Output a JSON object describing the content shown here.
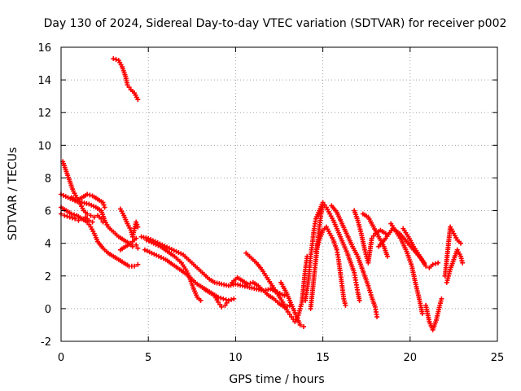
{
  "chart_data": {
    "type": "scatter",
    "title": "Day 130 of 2024, Sidereal Day-to-day VTEC variation (SDTVAR) for receiver p002",
    "xlabel": "GPS time / hours",
    "ylabel": "SDTVAR / TECUs",
    "xlim": [
      0,
      25
    ],
    "ylim": [
      -2,
      16
    ],
    "xticks": [
      "0",
      "5",
      "10",
      "15",
      "20",
      "25"
    ],
    "yticks": [
      "-2",
      "0",
      "2",
      "4",
      "6",
      "8",
      "10",
      "12",
      "14",
      "16"
    ],
    "grid": true,
    "marker": "+",
    "series_color": "#ff0000",
    "series": [
      {
        "name": "s1",
        "points": [
          [
            3.0,
            15.3
          ],
          [
            3.3,
            15.2
          ],
          [
            3.5,
            14.8
          ],
          [
            3.7,
            14.2
          ],
          [
            3.8,
            13.7
          ],
          [
            4.0,
            13.4
          ],
          [
            4.2,
            13.2
          ],
          [
            4.4,
            12.8
          ]
        ]
      },
      {
        "name": "s2",
        "points": [
          [
            0.1,
            9.0
          ],
          [
            0.3,
            8.4
          ],
          [
            0.5,
            7.8
          ],
          [
            0.7,
            7.2
          ],
          [
            0.9,
            6.8
          ],
          [
            1.1,
            6.4
          ],
          [
            1.3,
            6.0
          ],
          [
            1.5,
            5.8
          ],
          [
            1.7,
            5.7
          ],
          [
            1.9,
            5.6
          ],
          [
            2.1,
            5.7
          ],
          [
            2.3,
            5.5
          ],
          [
            2.4,
            5.3
          ]
        ]
      },
      {
        "name": "s3",
        "points": [
          [
            0.0,
            7.0
          ],
          [
            0.4,
            6.8
          ],
          [
            0.8,
            6.6
          ],
          [
            1.2,
            6.5
          ],
          [
            1.6,
            6.4
          ],
          [
            2.0,
            6.2
          ],
          [
            2.3,
            6.0
          ],
          [
            2.5,
            5.4
          ],
          [
            2.7,
            5.0
          ],
          [
            3.0,
            4.7
          ],
          [
            3.3,
            4.4
          ],
          [
            3.6,
            4.2
          ],
          [
            3.9,
            4.0
          ],
          [
            4.1,
            3.8
          ],
          [
            4.3,
            3.9
          ],
          [
            4.4,
            3.7
          ]
        ]
      },
      {
        "name": "s4",
        "points": [
          [
            0.0,
            6.2
          ],
          [
            0.3,
            6.0
          ],
          [
            0.6,
            5.8
          ],
          [
            0.9,
            5.7
          ],
          [
            1.2,
            5.5
          ],
          [
            1.5,
            5.3
          ],
          [
            1.7,
            5.0
          ],
          [
            1.9,
            4.6
          ],
          [
            2.1,
            4.1
          ],
          [
            2.4,
            3.7
          ],
          [
            2.7,
            3.4
          ],
          [
            3.0,
            3.2
          ],
          [
            3.3,
            3.0
          ],
          [
            3.6,
            2.8
          ],
          [
            3.9,
            2.6
          ],
          [
            4.2,
            2.6
          ],
          [
            4.4,
            2.7
          ]
        ]
      },
      {
        "name": "s5",
        "points": [
          [
            0.0,
            5.8
          ],
          [
            0.2,
            5.7
          ],
          [
            0.5,
            5.6
          ],
          [
            0.8,
            5.5
          ],
          [
            1.0,
            5.4
          ],
          [
            1.2,
            5.5
          ],
          [
            1.4,
            5.6
          ],
          [
            1.6,
            5.4
          ],
          [
            1.8,
            5.3
          ]
        ]
      },
      {
        "name": "s6",
        "points": [
          [
            0.6,
            6.8
          ],
          [
            0.9,
            6.6
          ],
          [
            1.2,
            6.8
          ],
          [
            1.5,
            7.0
          ],
          [
            1.8,
            6.9
          ],
          [
            2.1,
            6.7
          ],
          [
            2.4,
            6.5
          ],
          [
            2.5,
            6.2
          ]
        ]
      },
      {
        "name": "s7",
        "points": [
          [
            3.4,
            6.1
          ],
          [
            3.6,
            5.7
          ],
          [
            3.8,
            5.2
          ],
          [
            4.0,
            4.8
          ],
          [
            4.1,
            4.4
          ],
          [
            4.3,
            5.3
          ],
          [
            4.4,
            5.0
          ]
        ]
      },
      {
        "name": "s8",
        "points": [
          [
            3.4,
            3.6
          ],
          [
            3.7,
            3.8
          ],
          [
            4.0,
            4.0
          ],
          [
            4.3,
            4.3
          ]
        ]
      },
      {
        "name": "s9",
        "points": [
          [
            4.6,
            4.4
          ],
          [
            5.0,
            4.3
          ],
          [
            5.4,
            4.1
          ],
          [
            5.8,
            3.9
          ],
          [
            6.2,
            3.7
          ],
          [
            6.6,
            3.5
          ],
          [
            7.0,
            3.3
          ],
          [
            7.3,
            3.0
          ],
          [
            7.6,
            2.7
          ],
          [
            7.9,
            2.4
          ],
          [
            8.2,
            2.1
          ],
          [
            8.5,
            1.8
          ],
          [
            8.8,
            1.6
          ],
          [
            9.2,
            1.5
          ],
          [
            9.6,
            1.4
          ],
          [
            10.0,
            1.5
          ],
          [
            10.4,
            1.4
          ],
          [
            10.8,
            1.3
          ],
          [
            11.2,
            1.2
          ],
          [
            11.6,
            1.1
          ],
          [
            12.0,
            1.2
          ],
          [
            12.4,
            1.0
          ],
          [
            12.8,
            0.8
          ]
        ]
      },
      {
        "name": "s10",
        "points": [
          [
            4.8,
            3.6
          ],
          [
            5.2,
            3.4
          ],
          [
            5.6,
            3.2
          ],
          [
            6.0,
            3.0
          ],
          [
            6.4,
            2.7
          ],
          [
            6.8,
            2.4
          ],
          [
            7.2,
            2.1
          ],
          [
            7.5,
            1.8
          ],
          [
            7.8,
            1.5
          ],
          [
            8.1,
            1.3
          ],
          [
            8.4,
            1.1
          ],
          [
            8.7,
            0.9
          ],
          [
            9.0,
            0.7
          ],
          [
            9.3,
            0.6
          ],
          [
            9.6,
            0.5
          ],
          [
            9.9,
            0.6
          ]
        ]
      },
      {
        "name": "s11",
        "points": [
          [
            4.9,
            4.2
          ],
          [
            5.3,
            4.0
          ],
          [
            5.7,
            3.8
          ],
          [
            6.1,
            3.5
          ],
          [
            6.5,
            3.2
          ],
          [
            6.9,
            2.8
          ],
          [
            7.2,
            2.3
          ],
          [
            7.4,
            1.8
          ],
          [
            7.6,
            1.2
          ],
          [
            7.8,
            0.7
          ],
          [
            8.0,
            0.5
          ]
        ]
      },
      {
        "name": "s12",
        "points": [
          [
            8.2,
            1.2
          ],
          [
            8.5,
            1.0
          ],
          [
            8.8,
            0.8
          ],
          [
            9.0,
            0.4
          ],
          [
            9.2,
            0.1
          ],
          [
            9.4,
            0.2
          ],
          [
            9.6,
            0.5
          ]
        ]
      },
      {
        "name": "s13",
        "points": [
          [
            9.8,
            1.6
          ],
          [
            10.1,
            1.9
          ],
          [
            10.4,
            1.7
          ],
          [
            10.7,
            1.5
          ],
          [
            11.0,
            1.6
          ],
          [
            11.3,
            1.4
          ],
          [
            11.6,
            1.1
          ],
          [
            11.9,
            0.8
          ],
          [
            12.2,
            0.6
          ],
          [
            12.5,
            0.3
          ],
          [
            12.8,
            0.1
          ],
          [
            13.1,
            0.2
          ]
        ]
      },
      {
        "name": "s14",
        "points": [
          [
            10.6,
            3.4
          ],
          [
            10.9,
            3.1
          ],
          [
            11.2,
            2.8
          ],
          [
            11.5,
            2.4
          ],
          [
            11.8,
            1.9
          ],
          [
            12.1,
            1.4
          ],
          [
            12.4,
            0.9
          ],
          [
            12.7,
            0.4
          ],
          [
            13.0,
            -0.2
          ],
          [
            13.2,
            -0.5
          ],
          [
            13.4,
            -0.8
          ],
          [
            13.6,
            -0.4
          ],
          [
            13.8,
            0.4
          ],
          [
            13.9,
            1.4
          ],
          [
            14.0,
            2.4
          ],
          [
            14.1,
            3.2
          ]
        ]
      },
      {
        "name": "s15",
        "points": [
          [
            12.6,
            1.6
          ],
          [
            12.9,
            1.0
          ],
          [
            13.1,
            0.5
          ],
          [
            13.3,
            0.0
          ],
          [
            13.5,
            -0.5
          ],
          [
            13.7,
            -1.0
          ],
          [
            13.9,
            -1.1
          ]
        ]
      },
      {
        "name": "s16",
        "points": [
          [
            14.0,
            0.5
          ],
          [
            14.2,
            2.0
          ],
          [
            14.3,
            3.2
          ],
          [
            14.4,
            4.0
          ],
          [
            14.5,
            4.9
          ],
          [
            14.6,
            5.5
          ],
          [
            14.8,
            6.0
          ],
          [
            15.0,
            6.5
          ],
          [
            15.2,
            6.2
          ],
          [
            15.4,
            5.8
          ],
          [
            15.6,
            5.4
          ],
          [
            15.8,
            4.9
          ],
          [
            16.0,
            4.4
          ],
          [
            16.2,
            3.9
          ],
          [
            16.4,
            3.4
          ],
          [
            16.6,
            2.8
          ],
          [
            16.8,
            2.2
          ],
          [
            16.9,
            1.6
          ],
          [
            17.0,
            1.0
          ],
          [
            17.1,
            0.5
          ]
        ]
      },
      {
        "name": "s17",
        "points": [
          [
            14.6,
            3.5
          ],
          [
            14.8,
            4.2
          ],
          [
            15.0,
            4.8
          ],
          [
            15.2,
            5.0
          ],
          [
            15.4,
            4.6
          ],
          [
            15.6,
            4.2
          ],
          [
            15.8,
            3.6
          ],
          [
            15.9,
            3.0
          ],
          [
            16.0,
            2.2
          ],
          [
            16.1,
            1.4
          ],
          [
            16.2,
            0.6
          ],
          [
            16.3,
            0.2
          ]
        ]
      },
      {
        "name": "s18",
        "points": [
          [
            14.3,
            0.0
          ],
          [
            14.4,
            1.0
          ],
          [
            14.5,
            2.0
          ],
          [
            14.6,
            3.0
          ],
          [
            14.7,
            4.0
          ],
          [
            14.8,
            5.0
          ],
          [
            14.9,
            5.8
          ],
          [
            15.0,
            6.3
          ]
        ]
      },
      {
        "name": "s19",
        "points": [
          [
            15.5,
            6.3
          ],
          [
            15.8,
            5.9
          ],
          [
            16.1,
            5.2
          ],
          [
            16.4,
            4.5
          ],
          [
            16.7,
            3.8
          ],
          [
            17.0,
            3.2
          ],
          [
            17.2,
            2.6
          ],
          [
            17.4,
            2.0
          ],
          [
            17.6,
            1.4
          ],
          [
            17.8,
            0.7
          ],
          [
            18.0,
            0.1
          ],
          [
            18.1,
            -0.5
          ]
        ]
      },
      {
        "name": "s20",
        "points": [
          [
            16.8,
            6.0
          ],
          [
            17.0,
            5.4
          ],
          [
            17.2,
            4.6
          ],
          [
            17.4,
            3.6
          ],
          [
            17.6,
            2.8
          ],
          [
            17.8,
            4.3
          ],
          [
            18.0,
            4.6
          ],
          [
            18.3,
            4.8
          ],
          [
            18.6,
            4.6
          ]
        ]
      },
      {
        "name": "s21",
        "points": [
          [
            17.3,
            5.8
          ],
          [
            17.6,
            5.6
          ],
          [
            17.9,
            5.0
          ],
          [
            18.2,
            4.4
          ],
          [
            18.5,
            3.8
          ],
          [
            18.7,
            3.2
          ]
        ]
      },
      {
        "name": "s22",
        "points": [
          [
            18.2,
            3.8
          ],
          [
            18.6,
            4.3
          ],
          [
            19.0,
            4.9
          ],
          [
            19.4,
            4.6
          ],
          [
            19.8,
            4.1
          ],
          [
            20.2,
            3.6
          ],
          [
            20.6,
            3.1
          ],
          [
            20.9,
            2.6
          ],
          [
            21.1,
            2.5
          ],
          [
            21.3,
            2.7
          ],
          [
            21.6,
            2.8
          ]
        ]
      },
      {
        "name": "s23",
        "points": [
          [
            18.9,
            5.2
          ],
          [
            19.2,
            4.7
          ],
          [
            19.5,
            4.2
          ],
          [
            19.8,
            3.5
          ],
          [
            20.1,
            2.6
          ],
          [
            20.3,
            1.6
          ],
          [
            20.5,
            0.7
          ],
          [
            20.7,
            -0.3
          ]
        ]
      },
      {
        "name": "s24",
        "points": [
          [
            19.6,
            4.9
          ],
          [
            19.9,
            4.4
          ],
          [
            20.2,
            3.8
          ],
          [
            20.5,
            3.3
          ],
          [
            20.8,
            2.8
          ]
        ]
      },
      {
        "name": "s25",
        "points": [
          [
            20.9,
            0.2
          ],
          [
            21.1,
            -0.8
          ],
          [
            21.3,
            -1.3
          ],
          [
            21.5,
            -0.7
          ],
          [
            21.7,
            0.2
          ],
          [
            21.8,
            0.6
          ]
        ]
      },
      {
        "name": "s26",
        "points": [
          [
            22.0,
            2.0
          ],
          [
            22.1,
            3.0
          ],
          [
            22.2,
            4.0
          ],
          [
            22.3,
            5.0
          ],
          [
            22.5,
            4.6
          ],
          [
            22.7,
            4.2
          ],
          [
            22.9,
            4.0
          ]
        ]
      },
      {
        "name": "s27",
        "points": [
          [
            22.1,
            1.6
          ],
          [
            22.3,
            2.4
          ],
          [
            22.5,
            3.0
          ],
          [
            22.7,
            3.6
          ],
          [
            22.9,
            3.2
          ],
          [
            23.0,
            2.8
          ]
        ]
      }
    ]
  }
}
